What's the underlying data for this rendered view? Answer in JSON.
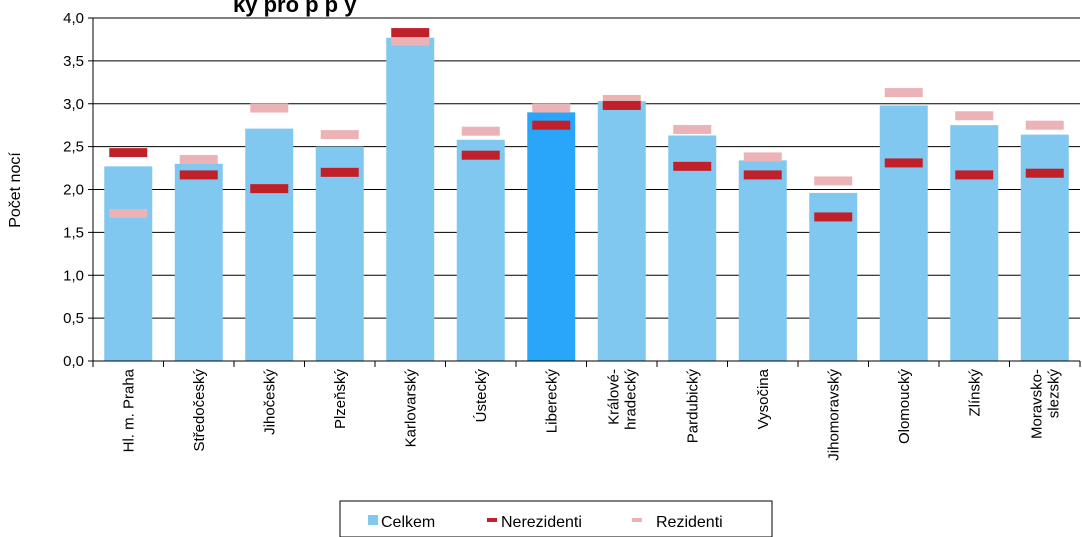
{
  "chart_data": {
    "type": "bar",
    "title": "ky pro p                    p             y",
    "ylabel": "Počet nocí",
    "ylim": [
      0,
      4
    ],
    "ytick_step": 0.5,
    "ytick_labels": [
      "0,0",
      "0,5",
      "1,0",
      "1,5",
      "2,0",
      "2,5",
      "3,0",
      "3,5",
      "4,0"
    ],
    "grid": true,
    "legend_position": "bottom",
    "categories": [
      [
        "Hl. m. Praha"
      ],
      [
        "Středočeský"
      ],
      [
        "Jihočeský"
      ],
      [
        "Plzeňský"
      ],
      [
        "Karlovarský"
      ],
      [
        "Ústecký"
      ],
      [
        "Liberecký"
      ],
      [
        "Králové-",
        "hradecký"
      ],
      [
        "Pardubický"
      ],
      [
        "Vysočina"
      ],
      [
        "Jihomoravský"
      ],
      [
        "Olomoucký"
      ],
      [
        "Zlínský"
      ],
      [
        "Moravsko-",
        "slezský"
      ]
    ],
    "highlight_index": 6,
    "series": [
      {
        "name": "Celkem",
        "kind": "bar",
        "color": "#80C8F0",
        "highlight_color": "#29A6F9",
        "values": [
          2.27,
          2.3,
          2.71,
          2.5,
          3.77,
          2.58,
          2.9,
          3.03,
          2.63,
          2.34,
          1.96,
          2.98,
          2.75,
          2.64
        ]
      },
      {
        "name": "Nerezidenti",
        "kind": "marker",
        "color": "#C0202A",
        "values": [
          2.43,
          2.17,
          2.01,
          2.2,
          3.83,
          2.4,
          2.75,
          2.98,
          2.27,
          2.17,
          1.68,
          2.31,
          2.17,
          2.19
        ]
      },
      {
        "name": "Rezidenti",
        "kind": "marker",
        "color": "#EBB3B6",
        "values": [
          1.72,
          2.35,
          2.95,
          2.64,
          3.73,
          2.68,
          2.95,
          3.05,
          2.7,
          2.38,
          2.1,
          3.13,
          2.86,
          2.75
        ]
      }
    ]
  }
}
